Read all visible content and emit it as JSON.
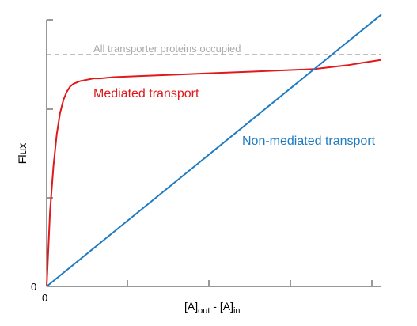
{
  "chart_data": {
    "type": "line",
    "title": "",
    "xlabel": {
      "base": "[A]",
      "sub1": "out",
      "mid": " - [A]",
      "sub2": "in"
    },
    "ylabel": "Flux",
    "xlim": [
      0,
      1
    ],
    "ylim": [
      0,
      1
    ],
    "x_tick_label": "0",
    "y_tick_label": "0",
    "grid": false,
    "reference_line": {
      "label": "All transporter proteins occupied",
      "y": 0.87,
      "color": "#aaaaaa"
    },
    "series": [
      {
        "name": "Mediated transport",
        "color": "#e0191b",
        "x": [
          0.0,
          0.01,
          0.02,
          0.03,
          0.04,
          0.05,
          0.06,
          0.07,
          0.08,
          0.09,
          0.1,
          0.12,
          0.14,
          0.16,
          0.2,
          0.3,
          0.4,
          0.5,
          0.6,
          0.7,
          0.8,
          0.9,
          0.95,
          1.0
        ],
        "values": [
          0.0,
          0.28,
          0.45,
          0.57,
          0.65,
          0.7,
          0.73,
          0.75,
          0.76,
          0.765,
          0.77,
          0.775,
          0.78,
          0.78,
          0.785,
          0.79,
          0.795,
          0.8,
          0.805,
          0.81,
          0.815,
          0.83,
          0.84,
          0.85
        ]
      },
      {
        "name": "Non-mediated transport",
        "color": "#1f7bc1",
        "x": [
          0.0,
          1.0
        ],
        "values": [
          0.0,
          1.02
        ]
      }
    ]
  }
}
